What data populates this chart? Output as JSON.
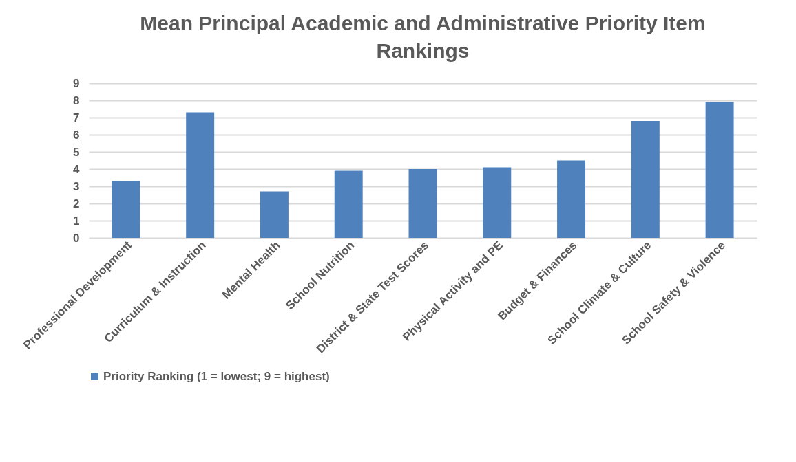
{
  "chart_data": {
    "type": "bar",
    "title": [
      "Mean Principal Academic and Administrative Priority Item",
      "Rankings"
    ],
    "categories": [
      "Professional Development",
      "Curriculum & Instruction",
      "Mental Health",
      "School Nutrition",
      "District & State Test Scores",
      "Physical Activity and PE",
      "Budget & Finances",
      "School Climate & Culture",
      "School Safety & Violence"
    ],
    "series": [
      {
        "name": "Priority Ranking (1 = lowest; 9 = highest)",
        "color": "#4f81bd",
        "values": [
          3.3,
          7.3,
          2.7,
          3.9,
          4.0,
          4.1,
          4.5,
          6.8,
          7.9
        ]
      }
    ],
    "ylim": [
      0,
      9
    ],
    "yticks": [
      0,
      1,
      2,
      3,
      4,
      5,
      6,
      7,
      8,
      9
    ],
    "grid": "y",
    "legend": "bottom"
  }
}
